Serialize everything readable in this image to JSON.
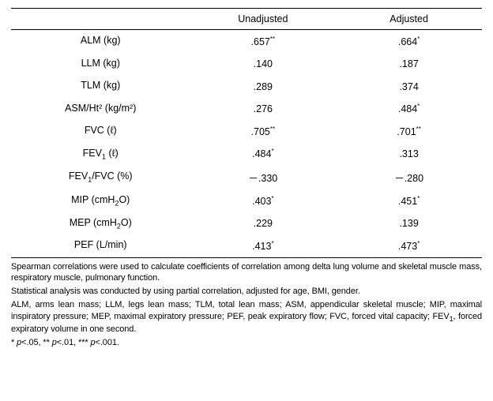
{
  "table": {
    "headers": [
      "",
      "Unadjusted",
      "Adjusted"
    ],
    "rows": [
      {
        "label_pre": "ALM (kg)",
        "sub": "",
        "label_post": "",
        "unadj_val": ".657",
        "unadj_sup": "**",
        "adj_val": ".664",
        "adj_sup": "*"
      },
      {
        "label_pre": "LLM (kg)",
        "sub": "",
        "label_post": "",
        "unadj_val": ".140",
        "unadj_sup": "",
        "adj_val": ".187",
        "adj_sup": ""
      },
      {
        "label_pre": "TLM (kg)",
        "sub": "",
        "label_post": "",
        "unadj_val": ".289",
        "unadj_sup": "",
        "adj_val": ".374",
        "adj_sup": ""
      },
      {
        "label_pre": "ASM/Ht",
        "sub": "",
        "label_post": "² (kg/m²)",
        "unadj_val": ".276",
        "unadj_sup": "",
        "adj_val": ".484",
        "adj_sup": "*"
      },
      {
        "label_pre": "FVC (ℓ)",
        "sub": "",
        "label_post": "",
        "unadj_val": ".705",
        "unadj_sup": "**",
        "adj_val": ".701",
        "adj_sup": "**"
      },
      {
        "label_pre": "FEV",
        "sub": "1",
        "label_post": " (ℓ)",
        "unadj_val": ".484",
        "unadj_sup": "*",
        "adj_val": ".313",
        "adj_sup": ""
      },
      {
        "label_pre": "FEV",
        "sub": "1",
        "label_post": "/FVC (%)",
        "unadj_val": "－.330",
        "unadj_sup": "",
        "adj_val": "－.280",
        "adj_sup": ""
      },
      {
        "label_pre": "MIP (cmH",
        "sub": "2",
        "label_post": "O)",
        "unadj_val": ".403",
        "unadj_sup": "*",
        "adj_val": ".451",
        "adj_sup": "*"
      },
      {
        "label_pre": "MEP (cmH",
        "sub": "2",
        "label_post": "O)",
        "unadj_val": ".229",
        "unadj_sup": "",
        "adj_val": ".139",
        "adj_sup": ""
      },
      {
        "label_pre": "PEF (L/min)",
        "sub": "",
        "label_post": "",
        "unadj_val": ".413",
        "unadj_sup": "*",
        "adj_val": ".473",
        "adj_sup": "*"
      }
    ]
  },
  "footnotes": {
    "line1": "Spearman correlations were used to calculate coefficients of correlation among delta lung volume and skeletal muscle mass, respiratory muscle, pulmonary function.",
    "line2": "Statistical analysis was conducted by using partial correlation, adjusted for age, BMI, gender.",
    "line3_a": "ALM, arms lean mass; LLM, legs lean mass; TLM, total lean mass; ASM, appendicular skeletal muscle; MIP, maximal inspiratory pressure; MEP, maximal expiratory pressure; PEF, peak expiratory flow; FVC, forced vital capacity; FEV",
    "line3_sub": "1",
    "line3_b": ", forced expiratory volume in one second.",
    "sig_star1": "* ",
    "sig_p1": "p",
    "sig_t1": "<.05, ",
    "sig_star2": "** ",
    "sig_p2": "p",
    "sig_t2": "<.01, ",
    "sig_star3": "*** ",
    "sig_p3": "p",
    "sig_t3": "<.001."
  }
}
